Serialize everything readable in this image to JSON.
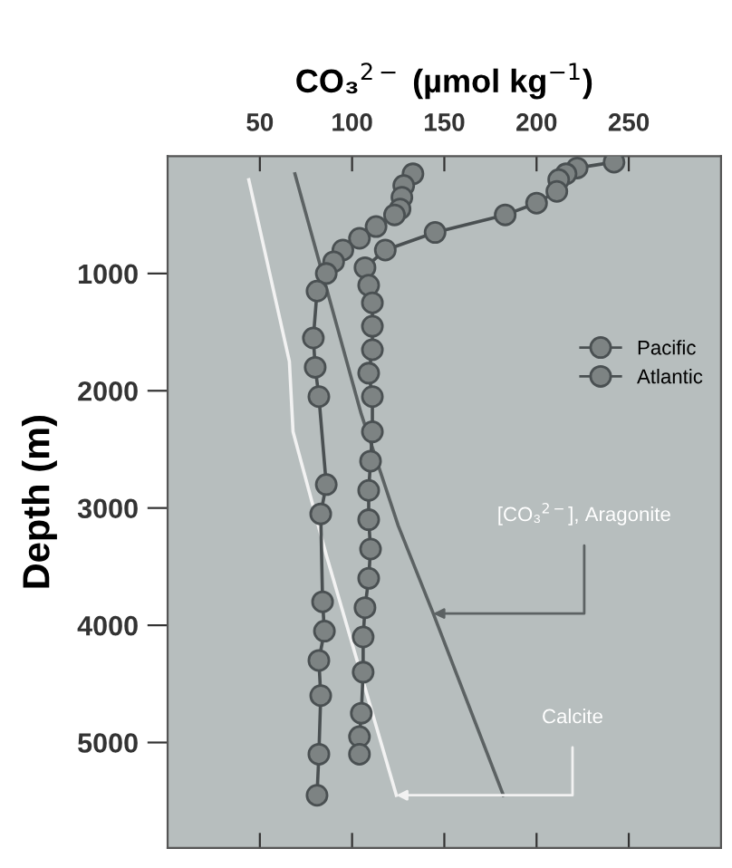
{
  "chart_data": {
    "type": "line",
    "xlabel": "CO₃$^{2−}$ (µmol kg$^{−1}$)",
    "ylabel": "Depth (m)",
    "xlim": [
      0,
      300
    ],
    "xticks": [
      50,
      100,
      150,
      200,
      250
    ],
    "ylim": [
      5900,
      0
    ],
    "yticks": [
      1000,
      2000,
      3000,
      4000,
      5000
    ],
    "grid": false,
    "legend": "right",
    "marker": "circle",
    "line_style": "solid",
    "series": [
      {
        "name": "Pacific",
        "color": "#4a5052",
        "x": [
          133,
          128,
          127,
          126,
          123,
          113,
          104,
          95,
          90,
          86,
          81,
          79,
          80,
          82,
          86,
          83,
          84,
          85,
          82,
          83,
          82,
          81
        ],
        "values": [
          150,
          250,
          350,
          450,
          500,
          600,
          700,
          800,
          900,
          1000,
          1150,
          1550,
          1800,
          2050,
          2800,
          3050,
          3800,
          4050,
          4300,
          4600,
          5100,
          5450
        ]
      },
      {
        "name": "Atlantic",
        "color": "#4a5052",
        "x": [
          242,
          222,
          216,
          212,
          211,
          200,
          183,
          145,
          118,
          107,
          109,
          111,
          111,
          111,
          109,
          111,
          111,
          110,
          109,
          109,
          110,
          109,
          107,
          106,
          106,
          105,
          104,
          104
        ],
        "values": [
          50,
          100,
          150,
          200,
          300,
          400,
          500,
          650,
          800,
          950,
          1100,
          1250,
          1450,
          1650,
          1850,
          2050,
          2350,
          2600,
          2850,
          3100,
          3350,
          3600,
          3850,
          4100,
          4400,
          4750,
          4950,
          5100
        ]
      },
      {
        "color": "#f2f2f2",
        "marker": "none",
        "x": [
          44,
          66,
          68,
          86,
          124
        ],
        "values": [
          200,
          1750,
          2350,
          3400,
          5450
        ]
      },
      {
        "color": "#5c6263",
        "marker": "none",
        "x": [
          69,
          105,
          125,
          144,
          182
        ],
        "values": [
          150,
          2200,
          3150,
          3900,
          5450
        ]
      }
    ],
    "annotations": [
      {
        "text": "[CO₃$^{2−}$], Aragonite",
        "x": 144,
        "y": 3900
      },
      {
        "text": "Calcite",
        "x": 124,
        "y": 5450
      }
    ]
  }
}
